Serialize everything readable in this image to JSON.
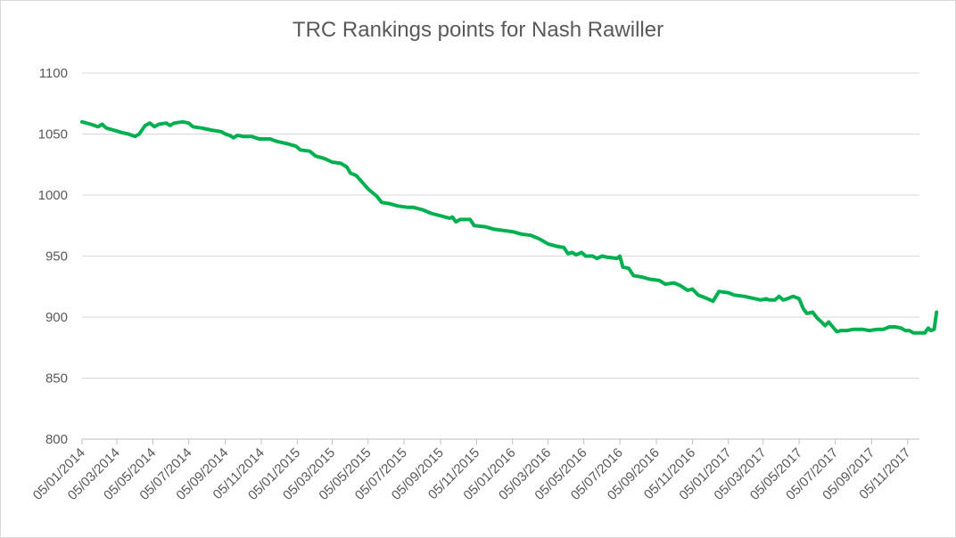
{
  "chart_data": {
    "type": "line",
    "title": "TRC Rankings points for Nash Rawiller",
    "xlabel": "",
    "ylabel": "",
    "ylim": [
      800,
      1100
    ],
    "yticks": [
      800,
      850,
      900,
      950,
      1000,
      1050,
      1100
    ],
    "xlim": [
      "2014-01-05",
      "2017-11-25"
    ],
    "x_tick_labels": [
      "05/01/2014",
      "05/03/2014",
      "05/05/2014",
      "05/07/2014",
      "05/09/2014",
      "05/11/2014",
      "05/01/2015",
      "05/03/2015",
      "05/05/2015",
      "05/07/2015",
      "05/09/2015",
      "05/11/2015",
      "05/01/2016",
      "05/03/2016",
      "05/05/2016",
      "05/07/2016",
      "05/09/2016",
      "05/11/2016",
      "05/01/2017",
      "05/03/2017",
      "05/05/2017",
      "05/07/2017",
      "05/09/2017",
      "05/11/2017"
    ],
    "grid": "horizontal",
    "legend": "none",
    "line_color": "#00b050",
    "series": [
      {
        "points": [
          [
            "2014-01-05",
            1060
          ],
          [
            "2014-01-20",
            1058
          ],
          [
            "2014-02-01",
            1056
          ],
          [
            "2014-02-08",
            1058
          ],
          [
            "2014-02-15",
            1055
          ],
          [
            "2014-03-01",
            1053
          ],
          [
            "2014-03-15",
            1051
          ],
          [
            "2014-03-25",
            1050
          ],
          [
            "2014-04-05",
            1048
          ],
          [
            "2014-04-12",
            1050
          ],
          [
            "2014-04-22",
            1057
          ],
          [
            "2014-04-30",
            1059
          ],
          [
            "2014-05-08",
            1056
          ],
          [
            "2014-05-15",
            1058
          ],
          [
            "2014-05-28",
            1059
          ],
          [
            "2014-06-03",
            1057
          ],
          [
            "2014-06-10",
            1059
          ],
          [
            "2014-06-25",
            1060
          ],
          [
            "2014-07-05",
            1059
          ],
          [
            "2014-07-12",
            1056
          ],
          [
            "2014-07-26",
            1055
          ],
          [
            "2014-08-05",
            1054
          ],
          [
            "2014-08-15",
            1053
          ],
          [
            "2014-08-29",
            1052
          ],
          [
            "2014-09-05",
            1050
          ],
          [
            "2014-09-12",
            1049
          ],
          [
            "2014-09-19",
            1047
          ],
          [
            "2014-09-26",
            1049
          ],
          [
            "2014-10-05",
            1048
          ],
          [
            "2014-10-20",
            1048
          ],
          [
            "2014-11-01",
            1046
          ],
          [
            "2014-11-20",
            1046
          ],
          [
            "2014-12-01",
            1044
          ],
          [
            "2014-12-20",
            1042
          ],
          [
            "2015-01-03",
            1040
          ],
          [
            "2015-01-10",
            1037
          ],
          [
            "2015-01-26",
            1036
          ],
          [
            "2015-02-05",
            1032
          ],
          [
            "2015-02-20",
            1030
          ],
          [
            "2015-03-05",
            1027
          ],
          [
            "2015-03-20",
            1026
          ],
          [
            "2015-03-30",
            1023
          ],
          [
            "2015-04-05",
            1018
          ],
          [
            "2015-04-15",
            1016
          ],
          [
            "2015-04-26",
            1010
          ],
          [
            "2015-05-05",
            1005
          ],
          [
            "2015-05-20",
            999
          ],
          [
            "2015-05-28",
            994
          ],
          [
            "2015-06-10",
            993
          ],
          [
            "2015-06-25",
            991
          ],
          [
            "2015-07-10",
            990
          ],
          [
            "2015-07-20",
            990
          ],
          [
            "2015-08-05",
            988
          ],
          [
            "2015-08-20",
            985
          ],
          [
            "2015-09-05",
            983
          ],
          [
            "2015-09-20",
            981
          ],
          [
            "2015-09-25",
            982
          ],
          [
            "2015-10-01",
            978
          ],
          [
            "2015-10-08",
            980
          ],
          [
            "2015-10-25",
            980
          ],
          [
            "2015-11-01",
            975
          ],
          [
            "2015-11-20",
            974
          ],
          [
            "2015-12-05",
            972
          ],
          [
            "2015-12-20",
            971
          ],
          [
            "2016-01-05",
            970
          ],
          [
            "2016-01-20",
            968
          ],
          [
            "2016-02-05",
            967
          ],
          [
            "2016-02-20",
            964
          ],
          [
            "2016-03-05",
            960
          ],
          [
            "2016-03-20",
            958
          ],
          [
            "2016-04-01",
            957
          ],
          [
            "2016-04-08",
            952
          ],
          [
            "2016-04-15",
            953
          ],
          [
            "2016-04-22",
            951
          ],
          [
            "2016-05-01",
            953
          ],
          [
            "2016-05-08",
            950
          ],
          [
            "2016-05-20",
            950
          ],
          [
            "2016-05-27",
            948
          ],
          [
            "2016-06-05",
            950
          ],
          [
            "2016-06-15",
            949
          ],
          [
            "2016-06-30",
            948
          ],
          [
            "2016-07-05",
            950
          ],
          [
            "2016-07-10",
            941
          ],
          [
            "2016-07-20",
            940
          ],
          [
            "2016-07-28",
            934
          ],
          [
            "2016-08-10",
            933
          ],
          [
            "2016-08-25",
            931
          ],
          [
            "2016-09-10",
            930
          ],
          [
            "2016-09-20",
            927
          ],
          [
            "2016-10-05",
            928
          ],
          [
            "2016-10-15",
            926
          ],
          [
            "2016-10-28",
            922
          ],
          [
            "2016-11-05",
            923
          ],
          [
            "2016-11-15",
            918
          ],
          [
            "2016-11-26",
            916
          ],
          [
            "2016-12-10",
            913
          ],
          [
            "2016-12-20",
            921
          ],
          [
            "2017-01-05",
            920
          ],
          [
            "2017-01-15",
            918
          ],
          [
            "2017-02-01",
            917
          ],
          [
            "2017-02-10",
            916
          ],
          [
            "2017-02-20",
            915
          ],
          [
            "2017-03-01",
            914
          ],
          [
            "2017-03-10",
            915
          ],
          [
            "2017-03-15",
            914
          ],
          [
            "2017-03-25",
            914
          ],
          [
            "2017-04-01",
            917
          ],
          [
            "2017-04-08",
            914
          ],
          [
            "2017-04-15",
            915
          ],
          [
            "2017-04-25",
            917
          ],
          [
            "2017-05-05",
            915
          ],
          [
            "2017-05-12",
            907
          ],
          [
            "2017-05-18",
            903
          ],
          [
            "2017-05-28",
            904
          ],
          [
            "2017-06-05",
            899
          ],
          [
            "2017-06-12",
            896
          ],
          [
            "2017-06-18",
            893
          ],
          [
            "2017-06-24",
            896
          ],
          [
            "2017-07-01",
            892
          ],
          [
            "2017-07-08",
            888
          ],
          [
            "2017-07-15",
            889
          ],
          [
            "2017-07-25",
            889
          ],
          [
            "2017-08-05",
            890
          ],
          [
            "2017-08-20",
            890
          ],
          [
            "2017-09-01",
            889
          ],
          [
            "2017-09-15",
            890
          ],
          [
            "2017-09-25",
            890
          ],
          [
            "2017-10-05",
            892
          ],
          [
            "2017-10-15",
            892
          ],
          [
            "2017-10-25",
            891
          ],
          [
            "2017-11-01",
            889
          ],
          [
            "2017-11-08",
            889
          ],
          [
            "2017-11-15",
            887
          ],
          [
            "2017-11-20",
            887
          ],
          [
            "2017-11-28",
            887
          ],
          [
            "2017-12-04",
            887
          ],
          [
            "2017-12-10",
            891
          ],
          [
            "2017-12-14",
            889
          ],
          [
            "2017-12-20",
            890
          ],
          [
            "2017-12-24",
            904
          ]
        ]
      }
    ]
  }
}
